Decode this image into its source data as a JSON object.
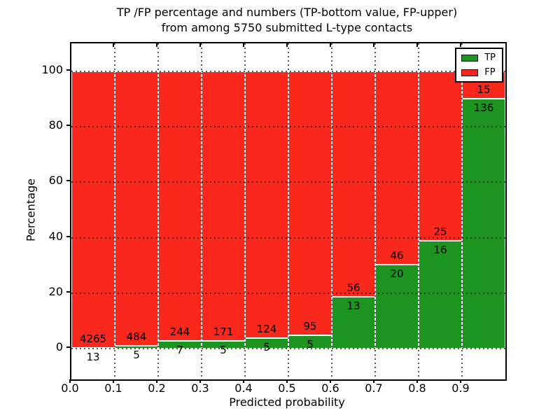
{
  "title": {
    "line1": "TP /FP percentage and numbers (TP-bottom value, FP-upper)",
    "line2": "from among 5750 submitted L-type contacts"
  },
  "axes": {
    "xlabel": "Predicted probability",
    "ylabel": "Percentage",
    "xtick_labels": [
      "0.0",
      "0.1",
      "0.2",
      "0.3",
      "0.4",
      "0.5",
      "0.6",
      "0.7",
      "0.8",
      "0.9"
    ],
    "ytick_labels": [
      "0",
      "20",
      "40",
      "60",
      "80",
      "100"
    ],
    "ytick_values": [
      0,
      20,
      40,
      60,
      80,
      100
    ]
  },
  "legend": {
    "items": [
      {
        "label": "TP",
        "color": "#1e9420"
      },
      {
        "label": "FP",
        "color": "#f8281c"
      }
    ]
  },
  "chart_data": {
    "type": "bar",
    "stacked": true,
    "normalized_to_percent": true,
    "title": "TP /FP percentage and numbers (TP-bottom value, FP-upper) from among 5750 submitted L-type contacts",
    "xlabel": "Predicted probability",
    "ylabel": "Percentage",
    "total_submitted": 5750,
    "bin_edges": [
      0.0,
      0.1,
      0.2,
      0.3,
      0.4,
      0.5,
      0.6,
      0.7,
      0.8,
      0.9,
      1.0
    ],
    "categories": [
      "0.0-0.1",
      "0.1-0.2",
      "0.2-0.3",
      "0.3-0.4",
      "0.4-0.5",
      "0.5-0.6",
      "0.6-0.7",
      "0.7-0.8",
      "0.8-0.9",
      "0.9-1.0"
    ],
    "series": [
      {
        "name": "TP",
        "color": "#1e9420",
        "counts": [
          13,
          5,
          7,
          5,
          5,
          5,
          13,
          20,
          16,
          136
        ]
      },
      {
        "name": "FP",
        "color": "#f8281c",
        "counts": [
          4265,
          484,
          244,
          171,
          124,
          95,
          56,
          46,
          25,
          15
        ]
      }
    ],
    "tp_percent": [
      0.3,
      1.02,
      2.79,
      2.84,
      3.88,
      5.0,
      18.84,
      30.3,
      39.02,
      90.07
    ],
    "xlim": [
      0.0,
      1.0
    ],
    "ylim": [
      -11,
      110
    ],
    "grid": true,
    "grid_style": "dotted",
    "legend_position": "upper right"
  }
}
